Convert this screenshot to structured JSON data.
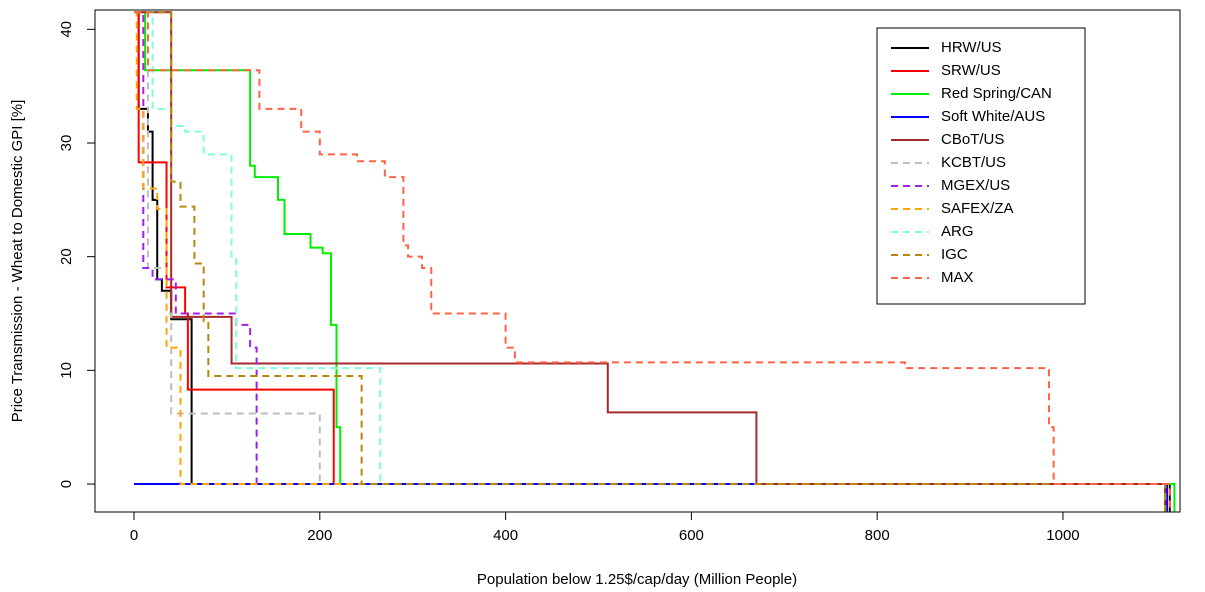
{
  "chart_data": {
    "type": "step",
    "x_label": "Population below 1.25$/cap/day (Million People)",
    "y_label": "Price Transmission - Wheat to Domestic GPI [%]",
    "xlim": [
      -42,
      1126
    ],
    "ylim": [
      -2.46,
      41.7
    ],
    "xticks": [
      0,
      200,
      400,
      600,
      800,
      1000
    ],
    "yticks": [
      0,
      10,
      20,
      30,
      40
    ],
    "legend": "upper right",
    "series": [
      {
        "name": "HRW/US",
        "color": "#000000",
        "dash": false,
        "x": [
          0,
          5,
          15,
          20,
          25,
          30,
          40,
          62,
          1115
        ],
        "values": [
          41.5,
          33,
          31,
          25,
          18,
          17,
          14.5,
          0,
          -2.4
        ]
      },
      {
        "name": "SRW/US",
        "color": "#ff0000",
        "dash": false,
        "x": [
          0,
          5,
          35,
          55,
          58,
          215,
          1110
        ],
        "values": [
          41.5,
          28.3,
          17.3,
          15,
          8.3,
          0,
          -2.4
        ]
      },
      {
        "name": "Red Spring/CAN",
        "color": "#00ee00",
        "dash": false,
        "x": [
          0,
          12,
          125,
          130,
          155,
          162,
          190,
          203,
          212,
          218,
          222,
          1120
        ],
        "values": [
          41.5,
          36.4,
          28,
          27,
          25,
          22,
          20.8,
          20.3,
          14,
          5,
          0,
          -2.4
        ]
      },
      {
        "name": "Soft White/AUS",
        "color": "#0000ff",
        "dash": false,
        "x": [
          0,
          1112
        ],
        "values": [
          0,
          -2.4
        ]
      },
      {
        "name": "CBoT/US",
        "color": "#a52a2a",
        "dash": false,
        "x": [
          0,
          40,
          105,
          510,
          670,
          1110
        ],
        "values": [
          41.5,
          14.7,
          10.6,
          6.3,
          0,
          -2.4
        ]
      },
      {
        "name": "KCBT/US",
        "color": "#bebebe",
        "dash": true,
        "x": [
          0,
          15,
          35,
          40,
          200,
          1110
        ],
        "values": [
          41.5,
          19,
          15,
          6.2,
          0,
          -2.4
        ]
      },
      {
        "name": "MGEX/US",
        "color": "#a020f0",
        "dash": true,
        "x": [
          0,
          10,
          20,
          45,
          110,
          125,
          132,
          1110
        ],
        "values": [
          41.5,
          19,
          18,
          15,
          14,
          12,
          0,
          -2.4
        ]
      },
      {
        "name": "SAFEX/ZA",
        "color": "#ffa500",
        "dash": true,
        "x": [
          0,
          3,
          10,
          25,
          35,
          50,
          1110
        ],
        "values": [
          41.5,
          33,
          26,
          24.2,
          12,
          0,
          -2.4
        ]
      },
      {
        "name": "ARG",
        "color": "#7fffd4",
        "dash": true,
        "x": [
          0,
          20,
          40,
          55,
          75,
          105,
          110,
          265,
          1110
        ],
        "values": [
          41.5,
          33,
          31.5,
          31,
          29,
          20,
          10.2,
          0,
          -2.4
        ]
      },
      {
        "name": "IGC",
        "color": "#b8860b",
        "dash": true,
        "x": [
          0,
          40,
          50,
          65,
          75,
          80,
          245,
          1110
        ],
        "values": [
          41.5,
          26.6,
          24.4,
          19.4,
          14.3,
          9.5,
          0,
          -2.4
        ]
      },
      {
        "name": "MAX",
        "color": "#ff6347",
        "dash": true,
        "x": [
          0,
          15,
          135,
          180,
          200,
          240,
          270,
          290,
          295,
          310,
          320,
          400,
          410,
          830,
          985,
          990,
          1115
        ],
        "values": [
          41.5,
          36.4,
          33,
          31,
          29,
          28.4,
          27,
          21,
          20,
          19,
          15,
          12,
          10.7,
          10.2,
          5,
          0,
          -2.4
        ]
      }
    ]
  }
}
